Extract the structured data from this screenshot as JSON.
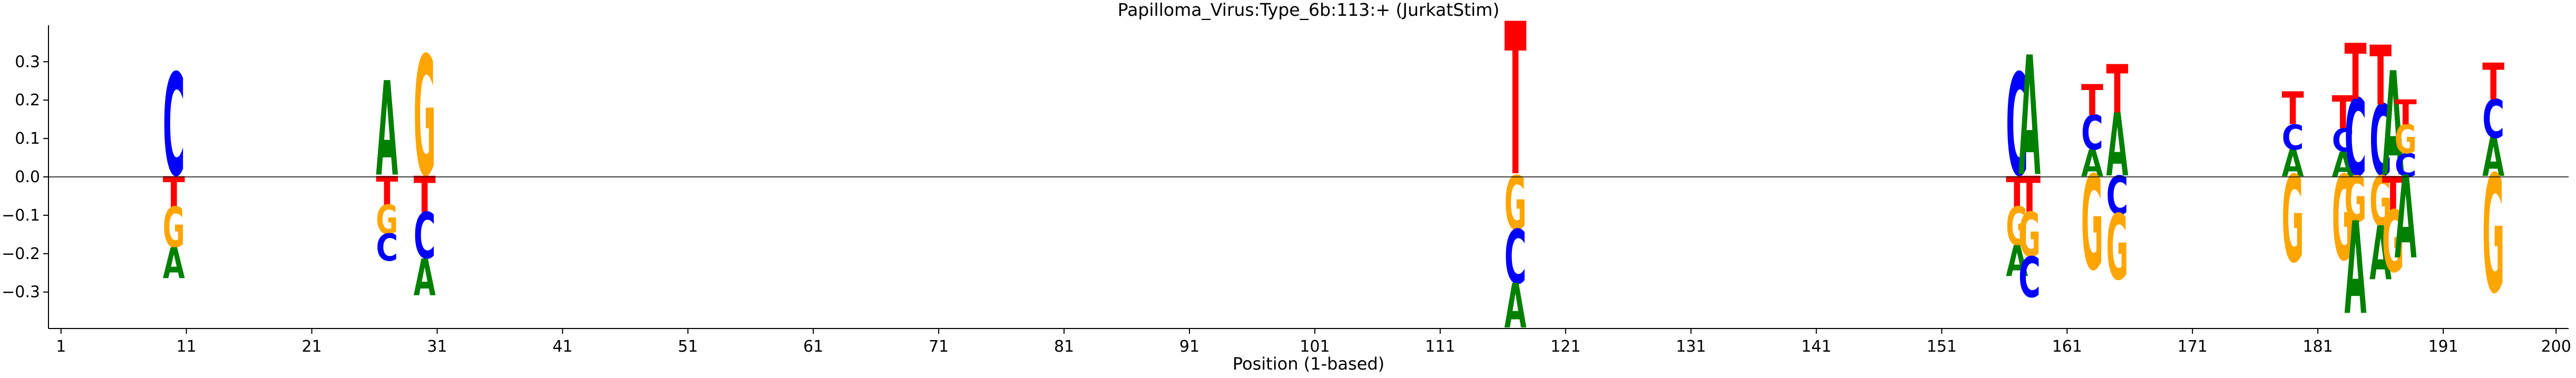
{
  "chart_data": {
    "type": "sequence-logo",
    "title": "Papilloma_Virus:Type_6b:113:+  (JurkatStim)",
    "xlabel": "Position (1-based)",
    "ylabel": "",
    "xlim": [
      0,
      201
    ],
    "ylim": [
      -0.395,
      0.395
    ],
    "x_ticks": [
      1,
      11,
      21,
      31,
      41,
      51,
      61,
      71,
      81,
      91,
      101,
      111,
      121,
      131,
      141,
      151,
      161,
      171,
      181,
      191,
      200
    ],
    "y_ticks": [
      -0.3,
      -0.2,
      -0.1,
      0.0,
      0.1,
      0.2,
      0.3
    ],
    "y_tick_labels": [
      "−0.3",
      "−0.2",
      "−0.1",
      "0.0",
      "0.1",
      "0.2",
      "0.3"
    ],
    "colors": {
      "A": "#008000",
      "C": "#0000ff",
      "G": "#ffa500",
      "T": "#ff0000"
    },
    "positions": [
      {
        "pos": 10,
        "up": [
          [
            "C",
            0.265
          ]
        ],
        "down": [
          [
            "T",
            0.08
          ],
          [
            "G",
            0.105
          ],
          [
            "A",
            0.08
          ]
        ]
      },
      {
        "pos": 27,
        "up": [
          [
            "A",
            0.245
          ]
        ],
        "down": [
          [
            "T",
            0.075
          ],
          [
            "G",
            0.075
          ],
          [
            "C",
            0.07
          ]
        ]
      },
      {
        "pos": 30,
        "up": [
          [
            "G",
            0.31
          ]
        ],
        "down": [
          [
            "T",
            0.095
          ],
          [
            "C",
            0.12
          ],
          [
            "A",
            0.095
          ]
        ]
      },
      {
        "pos": 117,
        "up": [
          [
            "T",
            0.395
          ]
        ],
        "down": [
          [
            "G",
            0.14
          ],
          [
            "C",
            0.14
          ],
          [
            "A",
            0.115
          ]
        ]
      },
      {
        "pos": 157,
        "up": [
          [
            "C",
            0.265
          ]
        ],
        "down": [
          [
            "T",
            0.08
          ],
          [
            "G",
            0.1
          ],
          [
            "A",
            0.08
          ]
        ]
      },
      {
        "pos": 158,
        "up": [
          [
            "A",
            0.31
          ]
        ],
        "down": [
          [
            "T",
            0.095
          ],
          [
            "G",
            0.115
          ],
          [
            "C",
            0.105
          ]
        ]
      },
      {
        "pos": 163,
        "up": [
          [
            "A",
            0.07
          ],
          [
            "C",
            0.09
          ],
          [
            "T",
            0.08
          ]
        ],
        "down": [
          [
            "G",
            0.245
          ]
        ]
      },
      {
        "pos": 165,
        "up": [
          [
            "A",
            0.165
          ],
          [
            "T",
            0.125
          ]
        ],
        "down": [
          [
            "C",
            0.1
          ],
          [
            "G",
            0.17
          ]
        ]
      },
      {
        "pos": 179,
        "up": [
          [
            "A",
            0.07
          ],
          [
            "C",
            0.065
          ],
          [
            "T",
            0.085
          ]
        ],
        "down": [
          [
            "G",
            0.225
          ]
        ]
      },
      {
        "pos": 183,
        "up": [
          [
            "A",
            0.065
          ],
          [
            "C",
            0.06
          ],
          [
            "T",
            0.085
          ]
        ],
        "down": [
          [
            "G",
            0.22
          ]
        ]
      },
      {
        "pos": 184,
        "up": [
          [
            "C",
            0.2
          ],
          [
            "T",
            0.145
          ]
        ],
        "down": [
          [
            "G",
            0.12
          ],
          [
            "A",
            0.24
          ]
        ]
      },
      {
        "pos": 186,
        "up": [
          [
            "C",
            0.185
          ],
          [
            "T",
            0.155
          ]
        ],
        "down": [
          [
            "G",
            0.13
          ],
          [
            "A",
            0.14
          ]
        ]
      },
      {
        "pos": 187,
        "up": [
          [
            "A",
            0.27
          ]
        ],
        "down": [
          [
            "T",
            0.09
          ],
          [
            "G",
            0.16
          ]
        ]
      },
      {
        "pos": 188,
        "up": [
          [
            "C",
            0.06
          ],
          [
            "G",
            0.075
          ],
          [
            "T",
            0.065
          ]
        ],
        "down": [
          [
            "A",
            0.215
          ]
        ]
      },
      {
        "pos": 195,
        "up": [
          [
            "A",
            0.1
          ],
          [
            "C",
            0.1
          ],
          [
            "T",
            0.095
          ]
        ],
        "down": [
          [
            "G",
            0.305
          ]
        ]
      }
    ]
  }
}
